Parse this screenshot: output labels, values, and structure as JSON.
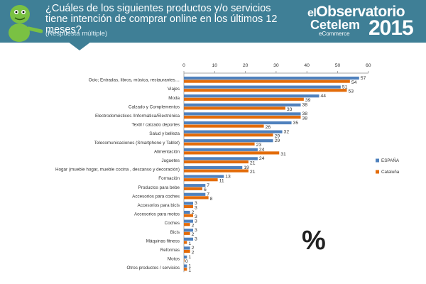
{
  "header": {
    "title": "¿Cuáles de los siguientes productos y/o servicios tiene intención de comprar online en los últimos 12 meses?",
    "subtitle": "(Respuesta múltiple)"
  },
  "logo": {
    "line1_prefix": "el",
    "line1": "Observatorio",
    "line2": "Cetelem",
    "line3": "eCommerce",
    "year": "2015"
  },
  "unit_symbol": "%",
  "colors": {
    "header_bg": "#3f7f96",
    "espana": "#4f81bd",
    "cataluna": "#e36c0a",
    "mascot": "#7ac143"
  },
  "chart_data": {
    "type": "bar",
    "orientation": "horizontal",
    "categories": [
      "Ocio; Entradas, libros, música, restaurantes…",
      "Viajes",
      "Moda",
      "Calzado y Complementos",
      "Electrodomésticos /Informática/Electrónica",
      "Textil / calzado deportes",
      "Salud y belleza",
      "Telecomunicaciones (Smartphone y Tablet)",
      "Alimentación",
      "Juguetes",
      "Hogar (mueble hogar,  mueble cocina , descanso y decoración)",
      "Formación",
      "Productos para bebe",
      "Accesorios para coches",
      "Accesorios para bicis",
      "Accesorios para motos",
      "Coches",
      "Bicis",
      "Máquinas fitness",
      "Reformas",
      "Motos",
      "Otros productos / servicios"
    ],
    "series": [
      {
        "name": "ESPAÑA",
        "color": "#4f81bd",
        "values": [
          57,
          51,
          44,
          38,
          38,
          35,
          32,
          29,
          24,
          24,
          19,
          13,
          7,
          7,
          3,
          2,
          3,
          3,
          3,
          2,
          1,
          1
        ]
      },
      {
        "name": "Cataluña",
        "color": "#e36c0a",
        "values": [
          54,
          53,
          39,
          33,
          38,
          26,
          29,
          23,
          31,
          21,
          21,
          11,
          6,
          8,
          3,
          3,
          2,
          2,
          1,
          2,
          0,
          1
        ]
      }
    ],
    "xlim": [
      0,
      60
    ],
    "xticks": [
      "0",
      "10",
      "20",
      "30",
      "40",
      "50",
      "60"
    ],
    "grid": false,
    "legend_position": "right"
  }
}
